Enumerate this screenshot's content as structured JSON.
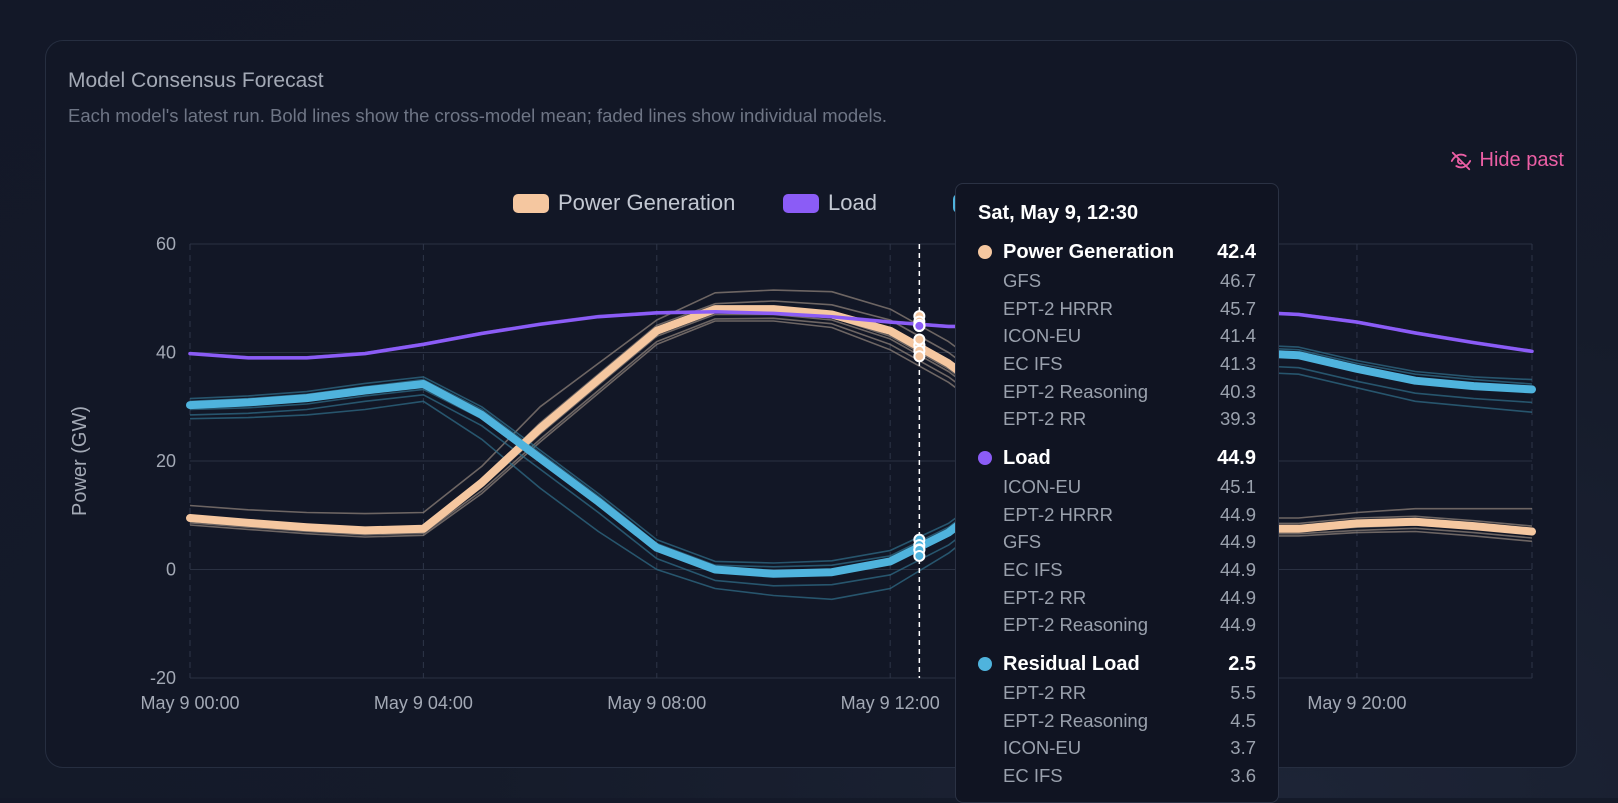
{
  "card": {
    "title": "Model Consensus Forecast",
    "description": "Each model's latest run. Bold lines show the cross-model mean; faded lines show individual models.",
    "hide_past_label": "Hide past"
  },
  "chart_data": {
    "type": "line",
    "ylabel": "Power (GW)",
    "ylim": [
      -20,
      60
    ],
    "yticks": [
      -20,
      0,
      20,
      40,
      60
    ],
    "xlim": [
      "May 9 00:00",
      "May 9 23:00"
    ],
    "x_tick_labels": [
      "May 9 00:00",
      "May 9 04:00",
      "May 9 08:00",
      "May 9 12:00",
      "May 9 16:00",
      "May 9 20:00"
    ],
    "x_tick_hours": [
      0,
      4,
      8,
      12,
      16,
      20
    ],
    "hover_hour": 12.5,
    "legend": [
      {
        "name": "Power Generation",
        "color": "#f5c7a0"
      },
      {
        "name": "Load",
        "color": "#8b5cf6"
      },
      {
        "name": "Residual Load",
        "color": "#4fb3dd"
      }
    ],
    "hours": [
      0,
      1,
      2,
      3,
      4,
      5,
      6,
      7,
      8,
      9,
      10,
      11,
      12,
      13,
      14,
      15,
      16,
      17,
      18,
      19,
      20,
      21,
      22,
      23
    ],
    "series": [
      {
        "name": "Power Generation",
        "color": "#f5c7a0",
        "role": "mean",
        "values": [
          9.5,
          8.6,
          7.8,
          7.2,
          7.5,
          16,
          26,
          35,
          44,
          48,
          48,
          47,
          44,
          38,
          30,
          23,
          16,
          10,
          7.5,
          7.5,
          8.5,
          8.8,
          8.0,
          7.0
        ],
        "models": [
          {
            "name": "GFS",
            "values": [
              11.8,
              11,
              10.5,
              10.3,
              10.5,
              19,
              30,
              38,
              46,
              51,
              51.5,
              51.2,
              48,
              42,
              34,
              26,
              18,
              12,
              9.5,
              9.5,
              10.5,
              11.2,
              11.2,
              11.2
            ]
          },
          {
            "name": "EPT-2 HRRR",
            "values": [
              10,
              9,
              8.2,
              7.6,
              7.8,
              16.5,
              27,
              36,
              45,
              49,
              49.5,
              48.8,
              46,
              40,
              32,
              24,
              17,
              11,
              8.5,
              8.5,
              9.5,
              9.8,
              9,
              8
            ]
          },
          {
            "name": "ICON-EU",
            "values": [
              9.2,
              8.4,
              7.6,
              7,
              7.3,
              15.5,
              25.5,
              34.5,
              43.5,
              47.5,
              47.5,
              46.5,
              43,
              37,
              29,
              22,
              15.5,
              9.8,
              7.2,
              7.2,
              8,
              8.5,
              7.8,
              6.8
            ]
          },
          {
            "name": "EC IFS",
            "values": [
              9,
              8.2,
              7.4,
              6.8,
              7.1,
              15.2,
              25,
              34,
              43,
              47,
              47,
              46,
              42.5,
              36.5,
              28.5,
              21.5,
              15,
              9.5,
              7,
              7,
              7.8,
              8.2,
              7.5,
              6.5
            ]
          },
          {
            "name": "EPT-2 Reasoning",
            "values": [
              8.6,
              7.8,
              7,
              6.4,
              6.7,
              14.5,
              24,
              33,
              42,
              46.2,
              46.3,
              45.3,
              41.5,
              35.5,
              27.5,
              20.5,
              14.5,
              9,
              6.6,
              6.6,
              7.2,
              7.6,
              6.8,
              5.8
            ]
          },
          {
            "name": "EPT-2 RR",
            "values": [
              8.2,
              7.4,
              6.6,
              6,
              6.3,
              14,
              23.5,
              32.5,
              41.5,
              45.8,
              45.8,
              44.6,
              40.5,
              34.5,
              26.5,
              19.5,
              13.5,
              8.5,
              6.2,
              6.2,
              6.8,
              7,
              6.2,
              5.2
            ]
          }
        ]
      },
      {
        "name": "Load",
        "color": "#8b5cf6",
        "role": "mean",
        "values": [
          39.8,
          39,
          39,
          39.8,
          41.5,
          43.5,
          45.2,
          46.6,
          47.3,
          47.5,
          47.2,
          46.6,
          45.6,
          44.8,
          44.8,
          45.2,
          46,
          47,
          47.5,
          47,
          45.6,
          43.6,
          41.8,
          40.2
        ],
        "models": [
          {
            "name": "ICON-EU",
            "values": [
              40,
              39.2,
              39.2,
              40,
              41.7,
              43.7,
              45.4,
              46.8,
              47.5,
              47.7,
              47.4,
              46.8,
              45.8,
              45,
              45,
              45.4,
              46.2,
              47.2,
              47.7,
              47.2,
              45.8,
              43.8,
              42,
              40.4
            ]
          },
          {
            "name": "EPT-2 HRRR",
            "values": [
              39.8,
              39,
              39,
              39.8,
              41.5,
              43.5,
              45.2,
              46.6,
              47.3,
              47.5,
              47.2,
              46.6,
              45.6,
              44.8,
              44.8,
              45.2,
              46,
              47,
              47.5,
              47,
              45.6,
              43.6,
              41.8,
              40.2
            ]
          },
          {
            "name": "GFS",
            "values": [
              39.7,
              38.9,
              38.9,
              39.7,
              41.4,
              43.4,
              45.1,
              46.5,
              47.2,
              47.4,
              47.1,
              46.5,
              45.5,
              44.7,
              44.7,
              45.1,
              45.9,
              46.9,
              47.4,
              46.9,
              45.5,
              43.5,
              41.7,
              40.1
            ]
          }
        ]
      },
      {
        "name": "Residual Load",
        "color": "#4fb3dd",
        "role": "mean",
        "values": [
          30.3,
          30.8,
          31.6,
          33,
          34.2,
          28.5,
          20.5,
          12.5,
          4,
          0,
          -0.8,
          -0.5,
          1.5,
          6.8,
          15,
          22,
          30,
          37,
          40,
          39.5,
          37,
          34.8,
          33.8,
          33.2
        ],
        "models": [
          {
            "name": "EPT-2 RR",
            "values": [
              31.5,
              32,
              32.8,
              34.3,
              35.5,
              30,
              22,
              14,
              5.5,
              1.5,
              1.2,
              1.6,
              3.5,
              8.5,
              16.5,
              23.5,
              31.5,
              38.5,
              41.5,
              41,
              38.5,
              36.5,
              35.5,
              35
            ]
          },
          {
            "name": "EPT-2 Reasoning",
            "values": [
              31,
              31.5,
              32.3,
              33.7,
              35,
              29.5,
              21.5,
              13.5,
              4.8,
              0.8,
              0.5,
              0.8,
              2.5,
              7.8,
              16,
              23,
              31,
              38,
              41,
              40.5,
              38,
              36,
              35,
              34.2
            ]
          },
          {
            "name": "ICON-EU",
            "values": [
              30,
              30.5,
              31.2,
              32.7,
              34,
              28.5,
              20.5,
              12.5,
              4,
              0,
              -0.5,
              -0.2,
              1.8,
              7,
              15.2,
              22.2,
              30.2,
              37.2,
              40.2,
              39.7,
              37.2,
              35,
              34,
              33.5
            ]
          },
          {
            "name": "EC IFS",
            "values": [
              29.5,
              29.8,
              30.5,
              32,
              33.2,
              27.8,
              19.8,
              11.8,
              3.5,
              -0.5,
              -1.2,
              -1,
              1,
              6.5,
              14.7,
              21.7,
              29.7,
              36.7,
              39.7,
              39.2,
              36.7,
              34.5,
              33.5,
              32.8
            ]
          },
          {
            "name": "EPT-2 HRRR",
            "values": [
              28.5,
              28.8,
              29.5,
              31,
              32.2,
              26.5,
              18.5,
              10.5,
              2,
              -2,
              -3,
              -2.8,
              -1,
              4.5,
              12.7,
              19.7,
              27.7,
              34.7,
              37.7,
              37.2,
              34.7,
              32.5,
              31.5,
              30.8
            ]
          },
          {
            "name": "GFS",
            "values": [
              27.8,
              28,
              28.5,
              29.5,
              31,
              24,
              15,
              7,
              0,
              -3.5,
              -4.8,
              -5.5,
              -3.5,
              3,
              11.5,
              18.5,
              26.5,
              33.5,
              36.5,
              36,
              33.5,
              31,
              30,
              29
            ]
          }
        ]
      }
    ]
  },
  "tooltip": {
    "header": "Sat, May 9, 12:30",
    "groups": [
      {
        "name": "Power Generation",
        "value": "42.4",
        "color": "#f5c7a0",
        "rows": [
          {
            "name": "GFS",
            "value": "46.7"
          },
          {
            "name": "EPT-2 HRRR",
            "value": "45.7"
          },
          {
            "name": "ICON-EU",
            "value": "41.4"
          },
          {
            "name": "EC IFS",
            "value": "41.3"
          },
          {
            "name": "EPT-2 Reasoning",
            "value": "40.3"
          },
          {
            "name": "EPT-2 RR",
            "value": "39.3"
          }
        ]
      },
      {
        "name": "Load",
        "value": "44.9",
        "color": "#8b5cf6",
        "rows": [
          {
            "name": "ICON-EU",
            "value": "45.1"
          },
          {
            "name": "EPT-2 HRRR",
            "value": "44.9"
          },
          {
            "name": "GFS",
            "value": "44.9"
          },
          {
            "name": "EC IFS",
            "value": "44.9"
          },
          {
            "name": "EPT-2 RR",
            "value": "44.9"
          },
          {
            "name": "EPT-2 Reasoning",
            "value": "44.9"
          }
        ]
      },
      {
        "name": "Residual Load",
        "value": "2.5",
        "color": "#4fb3dd",
        "rows": [
          {
            "name": "EPT-2 RR",
            "value": "5.5"
          },
          {
            "name": "EPT-2 Reasoning",
            "value": "4.5"
          },
          {
            "name": "ICON-EU",
            "value": "3.7"
          },
          {
            "name": "EC IFS",
            "value": "3.6"
          }
        ]
      }
    ]
  }
}
